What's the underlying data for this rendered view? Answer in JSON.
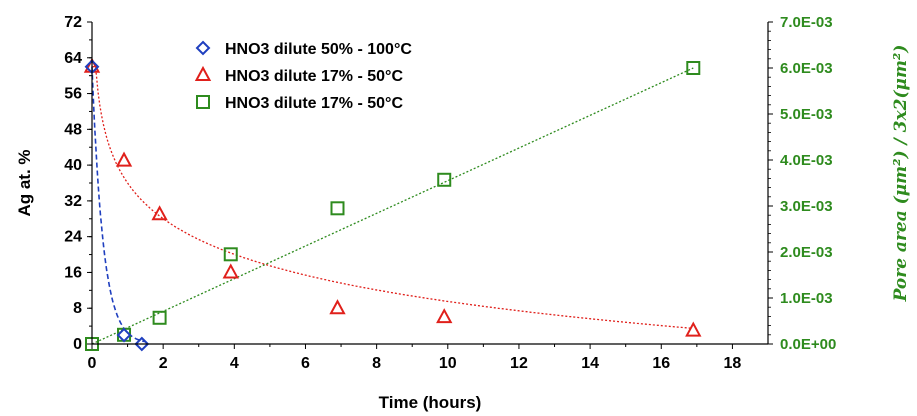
{
  "chart_data": {
    "type": "scatter",
    "xlabel": "Time (hours)",
    "ylabel": "Ag at. %",
    "y2label": "Pore area (μm²) / 3x2(μm²)",
    "xlim": [
      0,
      19
    ],
    "xticks": [
      "0",
      "2",
      "4",
      "6",
      "8",
      "10",
      "12",
      "14",
      "16",
      "18"
    ],
    "ylim": [
      0,
      72
    ],
    "yticks": [
      "0",
      "8",
      "16",
      "24",
      "32",
      "40",
      "48",
      "56",
      "64",
      "72"
    ],
    "y2lim": [
      0,
      0.007
    ],
    "y2ticks": [
      "0.0E+00",
      "1.0E-03",
      "2.0E-03",
      "3.0E-03",
      "4.0E-03",
      "5.0E-03",
      "6.0E-03",
      "7.0E-03"
    ],
    "grid": false,
    "legend_position": "top-left",
    "series": [
      {
        "name": "HNO3 dilute 50% - 100°C",
        "marker": "diamond",
        "color": "#1f3fbf",
        "axis": "left",
        "x": [
          0,
          0.9,
          1.4
        ],
        "y": [
          62,
          2,
          0
        ],
        "trend": "dashed exponential decay"
      },
      {
        "name": "HNO3 dilute 17% - 50°C",
        "marker": "triangle",
        "color": "#e0201b",
        "axis": "left",
        "x": [
          0,
          0.9,
          1.9,
          3.9,
          6.9,
          9.9,
          16.9
        ],
        "y": [
          62,
          41,
          29,
          16,
          8,
          6,
          3
        ],
        "trend": "dotted logarithmic"
      },
      {
        "name": "HNO3 dilute 17% - 50°C",
        "marker": "square",
        "color": "#2e8b1e",
        "axis": "right",
        "x": [
          0,
          0.9,
          1.9,
          3.9,
          6.9,
          9.9,
          16.9
        ],
        "y": [
          0,
          0.0002,
          0.00057,
          0.00195,
          0.00295,
          0.00357,
          0.006
        ],
        "trend": "dotted linear"
      }
    ]
  }
}
